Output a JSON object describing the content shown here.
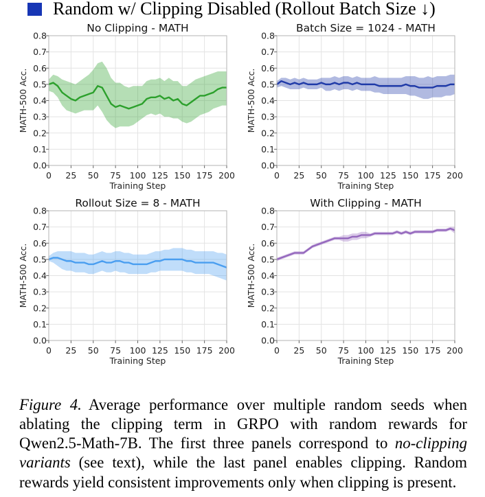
{
  "legend": {
    "label": "Random w/ Clipping Disabled (Rollout Batch Size ↓)",
    "color": "#1736b5"
  },
  "chart_data": [
    {
      "type": "line",
      "title": "No Clipping - MATH",
      "xlabel": "Training Step",
      "ylabel": "MATH-500 Acc.",
      "xlim": [
        0,
        200
      ],
      "ylim": [
        0,
        0.8
      ],
      "xticks": [
        0,
        25,
        50,
        75,
        100,
        125,
        150,
        175,
        200
      ],
      "yticks": [
        0.0,
        0.1,
        0.2,
        0.3,
        0.4,
        0.5,
        0.6,
        0.7,
        0.8
      ],
      "grid": true,
      "series": [
        {
          "name": "No Clipping",
          "color": "#2ca02c",
          "x": [
            0,
            5,
            10,
            15,
            20,
            25,
            30,
            35,
            40,
            45,
            50,
            55,
            60,
            65,
            70,
            75,
            80,
            85,
            90,
            95,
            100,
            105,
            110,
            115,
            120,
            125,
            130,
            135,
            140,
            145,
            150,
            155,
            160,
            165,
            170,
            175,
            180,
            185,
            190,
            195,
            200
          ],
          "y": [
            0.5,
            0.51,
            0.49,
            0.45,
            0.43,
            0.41,
            0.4,
            0.42,
            0.43,
            0.44,
            0.45,
            0.49,
            0.48,
            0.43,
            0.38,
            0.36,
            0.37,
            0.36,
            0.35,
            0.36,
            0.37,
            0.38,
            0.41,
            0.42,
            0.42,
            0.43,
            0.41,
            0.42,
            0.4,
            0.41,
            0.38,
            0.37,
            0.39,
            0.41,
            0.43,
            0.43,
            0.44,
            0.45,
            0.47,
            0.48,
            0.48
          ],
          "lower": [
            0.46,
            0.45,
            0.42,
            0.37,
            0.34,
            0.33,
            0.32,
            0.33,
            0.34,
            0.34,
            0.34,
            0.37,
            0.33,
            0.28,
            0.25,
            0.23,
            0.24,
            0.24,
            0.24,
            0.25,
            0.27,
            0.29,
            0.31,
            0.32,
            0.31,
            0.32,
            0.3,
            0.3,
            0.29,
            0.29,
            0.27,
            0.26,
            0.27,
            0.29,
            0.31,
            0.32,
            0.33,
            0.35,
            0.36,
            0.37,
            0.37
          ],
          "upper": [
            0.53,
            0.56,
            0.55,
            0.53,
            0.52,
            0.51,
            0.5,
            0.52,
            0.54,
            0.56,
            0.59,
            0.63,
            0.64,
            0.6,
            0.54,
            0.51,
            0.51,
            0.49,
            0.48,
            0.49,
            0.49,
            0.49,
            0.52,
            0.53,
            0.53,
            0.54,
            0.52,
            0.54,
            0.52,
            0.52,
            0.49,
            0.49,
            0.51,
            0.53,
            0.54,
            0.55,
            0.56,
            0.57,
            0.58,
            0.58,
            0.58
          ]
        }
      ]
    },
    {
      "type": "line",
      "title": "Batch Size = 1024 - MATH",
      "xlabel": "Training Step",
      "ylabel": "MATH-500 Acc.",
      "xlim": [
        0,
        200
      ],
      "ylim": [
        0,
        0.8
      ],
      "xticks": [
        0,
        25,
        50,
        75,
        100,
        125,
        150,
        175,
        200
      ],
      "yticks": [
        0.0,
        0.1,
        0.2,
        0.3,
        0.4,
        0.5,
        0.6,
        0.7,
        0.8
      ],
      "grid": true,
      "series": [
        {
          "name": "Batch Size = 1024",
          "color": "#1f3aa8",
          "x": [
            0,
            5,
            10,
            15,
            20,
            25,
            30,
            35,
            40,
            45,
            50,
            55,
            60,
            65,
            70,
            75,
            80,
            85,
            90,
            95,
            100,
            105,
            110,
            115,
            120,
            125,
            130,
            135,
            140,
            145,
            150,
            155,
            160,
            165,
            170,
            175,
            180,
            185,
            190,
            195,
            200
          ],
          "y": [
            0.5,
            0.52,
            0.51,
            0.5,
            0.51,
            0.5,
            0.51,
            0.5,
            0.5,
            0.5,
            0.51,
            0.5,
            0.5,
            0.51,
            0.5,
            0.51,
            0.51,
            0.5,
            0.51,
            0.5,
            0.5,
            0.5,
            0.5,
            0.49,
            0.49,
            0.49,
            0.49,
            0.49,
            0.49,
            0.5,
            0.49,
            0.49,
            0.48,
            0.48,
            0.48,
            0.48,
            0.49,
            0.49,
            0.49,
            0.5,
            0.5
          ],
          "lower": [
            0.48,
            0.49,
            0.48,
            0.47,
            0.47,
            0.47,
            0.48,
            0.47,
            0.47,
            0.47,
            0.48,
            0.46,
            0.46,
            0.47,
            0.46,
            0.47,
            0.47,
            0.46,
            0.47,
            0.46,
            0.46,
            0.46,
            0.45,
            0.45,
            0.44,
            0.44,
            0.44,
            0.44,
            0.44,
            0.44,
            0.43,
            0.43,
            0.42,
            0.41,
            0.41,
            0.42,
            0.42,
            0.42,
            0.43,
            0.43,
            0.44
          ],
          "upper": [
            0.52,
            0.54,
            0.54,
            0.53,
            0.54,
            0.53,
            0.54,
            0.53,
            0.53,
            0.53,
            0.54,
            0.54,
            0.54,
            0.55,
            0.54,
            0.55,
            0.55,
            0.54,
            0.55,
            0.54,
            0.54,
            0.54,
            0.55,
            0.54,
            0.54,
            0.54,
            0.54,
            0.54,
            0.54,
            0.55,
            0.55,
            0.55,
            0.54,
            0.54,
            0.55,
            0.54,
            0.55,
            0.55,
            0.55,
            0.56,
            0.56
          ]
        }
      ]
    },
    {
      "type": "line",
      "title": "Rollout Size = 8 - MATH",
      "xlabel": "Training Step",
      "ylabel": "MATH-500 Acc.",
      "xlim": [
        0,
        200
      ],
      "ylim": [
        0,
        0.8
      ],
      "xticks": [
        0,
        25,
        50,
        75,
        100,
        125,
        150,
        175,
        200
      ],
      "yticks": [
        0.0,
        0.1,
        0.2,
        0.3,
        0.4,
        0.5,
        0.6,
        0.7,
        0.8
      ],
      "grid": true,
      "series": [
        {
          "name": "Rollout Size = 8",
          "color": "#4a9ef0",
          "x": [
            0,
            5,
            10,
            15,
            20,
            25,
            30,
            35,
            40,
            45,
            50,
            55,
            60,
            65,
            70,
            75,
            80,
            85,
            90,
            95,
            100,
            105,
            110,
            115,
            120,
            125,
            130,
            135,
            140,
            145,
            150,
            155,
            160,
            165,
            170,
            175,
            180,
            185,
            190,
            195,
            200
          ],
          "y": [
            0.5,
            0.51,
            0.51,
            0.5,
            0.49,
            0.49,
            0.48,
            0.48,
            0.48,
            0.47,
            0.47,
            0.48,
            0.49,
            0.48,
            0.48,
            0.49,
            0.49,
            0.48,
            0.48,
            0.47,
            0.47,
            0.47,
            0.47,
            0.48,
            0.49,
            0.49,
            0.5,
            0.5,
            0.5,
            0.5,
            0.5,
            0.49,
            0.49,
            0.48,
            0.48,
            0.48,
            0.48,
            0.48,
            0.47,
            0.46,
            0.45
          ],
          "lower": [
            0.49,
            0.48,
            0.46,
            0.44,
            0.43,
            0.43,
            0.42,
            0.42,
            0.42,
            0.41,
            0.41,
            0.42,
            0.43,
            0.42,
            0.42,
            0.43,
            0.42,
            0.42,
            0.41,
            0.41,
            0.41,
            0.41,
            0.41,
            0.42,
            0.42,
            0.43,
            0.43,
            0.43,
            0.43,
            0.43,
            0.43,
            0.42,
            0.42,
            0.41,
            0.41,
            0.41,
            0.41,
            0.4,
            0.39,
            0.38,
            0.37
          ],
          "upper": [
            0.52,
            0.54,
            0.55,
            0.55,
            0.55,
            0.55,
            0.54,
            0.54,
            0.54,
            0.53,
            0.53,
            0.54,
            0.55,
            0.54,
            0.54,
            0.55,
            0.55,
            0.54,
            0.54,
            0.53,
            0.53,
            0.53,
            0.53,
            0.54,
            0.55,
            0.55,
            0.56,
            0.56,
            0.57,
            0.57,
            0.57,
            0.56,
            0.56,
            0.55,
            0.55,
            0.55,
            0.55,
            0.55,
            0.54,
            0.54,
            0.53
          ]
        }
      ]
    },
    {
      "type": "line",
      "title": "With Clipping - MATH",
      "xlabel": "Training Step",
      "ylabel": "MATH-500 Acc.",
      "xlim": [
        0,
        200
      ],
      "ylim": [
        0,
        0.8
      ],
      "xticks": [
        0,
        25,
        50,
        75,
        100,
        125,
        150,
        175,
        200
      ],
      "yticks": [
        0.0,
        0.1,
        0.2,
        0.3,
        0.4,
        0.5,
        0.6,
        0.7,
        0.8
      ],
      "grid": true,
      "series": [
        {
          "name": "With Clipping",
          "color": "#9467bd",
          "x": [
            0,
            5,
            10,
            15,
            20,
            25,
            30,
            35,
            40,
            45,
            50,
            55,
            60,
            65,
            70,
            75,
            80,
            85,
            90,
            95,
            100,
            105,
            110,
            115,
            120,
            125,
            130,
            135,
            140,
            145,
            150,
            155,
            160,
            165,
            170,
            175,
            180,
            185,
            190,
            195,
            200
          ],
          "y": [
            0.5,
            0.51,
            0.52,
            0.53,
            0.54,
            0.54,
            0.54,
            0.56,
            0.58,
            0.59,
            0.6,
            0.61,
            0.62,
            0.63,
            0.63,
            0.63,
            0.63,
            0.64,
            0.64,
            0.65,
            0.65,
            0.65,
            0.66,
            0.66,
            0.66,
            0.66,
            0.66,
            0.67,
            0.66,
            0.67,
            0.66,
            0.67,
            0.67,
            0.67,
            0.67,
            0.67,
            0.68,
            0.68,
            0.68,
            0.69,
            0.68
          ],
          "lower": [
            0.49,
            0.5,
            0.51,
            0.52,
            0.53,
            0.53,
            0.53,
            0.55,
            0.57,
            0.58,
            0.59,
            0.6,
            0.61,
            0.62,
            0.62,
            0.61,
            0.61,
            0.62,
            0.62,
            0.63,
            0.63,
            0.64,
            0.65,
            0.65,
            0.65,
            0.65,
            0.65,
            0.66,
            0.65,
            0.66,
            0.65,
            0.66,
            0.66,
            0.66,
            0.66,
            0.66,
            0.67,
            0.67,
            0.67,
            0.68,
            0.66
          ],
          "upper": [
            0.51,
            0.52,
            0.53,
            0.54,
            0.55,
            0.55,
            0.55,
            0.57,
            0.59,
            0.6,
            0.61,
            0.62,
            0.63,
            0.64,
            0.64,
            0.65,
            0.65,
            0.66,
            0.66,
            0.67,
            0.67,
            0.66,
            0.67,
            0.67,
            0.67,
            0.67,
            0.67,
            0.68,
            0.67,
            0.68,
            0.67,
            0.68,
            0.68,
            0.68,
            0.68,
            0.68,
            0.69,
            0.69,
            0.69,
            0.7,
            0.7
          ]
        }
      ]
    }
  ],
  "caption": {
    "label": "Figure 4.",
    "text1": "Average performance over multiple random seeds when ablating the clipping term in GRPO with random rewards for Qwen2.5-Math-7B. The first three panels correspond to ",
    "em": "no-clipping variants",
    "text2": " (see text), while the last panel enables clipping. Random rewards yield consistent improvements only when clipping is present."
  }
}
